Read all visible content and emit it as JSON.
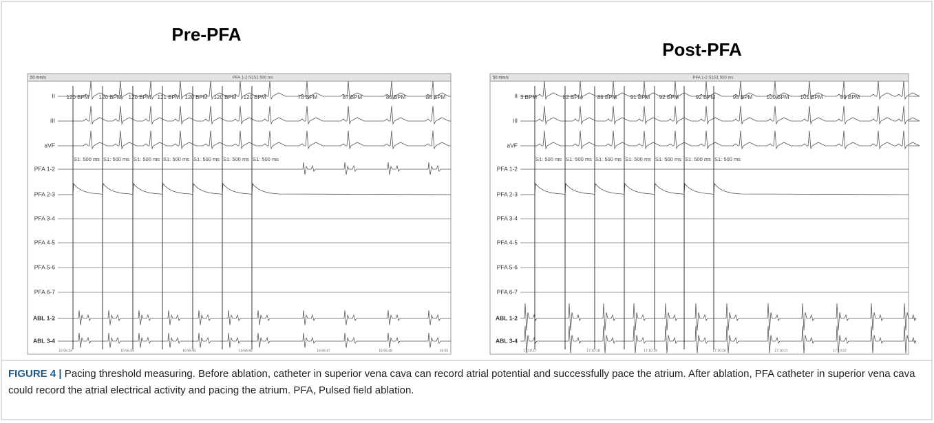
{
  "panels": [
    {
      "title": "Pre-PFA",
      "toolbar": {
        "speed": "50 mm/s",
        "protocol": "PFA 1-2 S1S1 500 ms"
      },
      "channels": [
        "II",
        "III",
        "aVF",
        "PFA 1-2",
        "PFA 2-3",
        "PFA 3-4",
        "PFA 4-5",
        "PFA 5-6",
        "PFA 6-7",
        "ABL 1-2",
        "ABL 3-4"
      ],
      "bpm_labels": [
        "120 BPM",
        "120 BPM",
        "120 BPM",
        "121 BPM",
        "120 BPM",
        "120 BPM",
        "120 BPM",
        "78 BPM",
        "87 BPM",
        "86 BPM",
        "86 BPM"
      ],
      "pacing_labels": [
        "S1: 500 ms",
        "S1: 500 ms",
        "S1: 500 ms",
        "S1: 500 ms",
        "S1: 500 ms",
        "S1: 500 ms",
        "S1: 500 ms"
      ],
      "timestamps": [
        "16:55:43",
        "16:55:44",
        "16:55:45",
        "16:55:46",
        "16:55:47",
        "16:55:48",
        "16:55"
      ]
    },
    {
      "title": "Post-PFA",
      "toolbar": {
        "speed": "50 mm/s",
        "protocol": "PFA 1-2 S1S1 500 ms"
      },
      "channels": [
        "II",
        "III",
        "aVF",
        "PFA 1-2",
        "PFA 2-3",
        "PFA 3-4",
        "PFA 4-5",
        "PFA 5-6",
        "PFA 6-7",
        "ABL 1-2",
        "ABL 3-4"
      ],
      "bpm_labels": [
        "3 BPM",
        "82 BPM",
        "88 BPM",
        "91 BPM",
        "92 BPM",
        "92 BPM",
        "95 BPM",
        "100 BPM",
        "101 BPM",
        "99 BPM"
      ],
      "pacing_labels": [
        "S1: 500 ms",
        "S1: 500 ms",
        "S1: 500 ms",
        "S1: 500 ms",
        "S1: 500 ms",
        "S1: 500 ms",
        "S1: 500 ms"
      ],
      "timestamps": [
        "17:10:17",
        "17:10:18",
        "17:10:19",
        "17:10:20",
        "17:10:21",
        "17:10:22"
      ]
    }
  ],
  "caption": {
    "label": "FIGURE 4 |",
    "text": "Pacing threshold measuring. Before ablation, catheter in superior vena cava can record atrial potential and successfully pace the atrium. After ablation, PFA catheter in superior vena cava could record the atrial electrical activity and pacing the atrium. PFA, Pulsed field ablation."
  }
}
